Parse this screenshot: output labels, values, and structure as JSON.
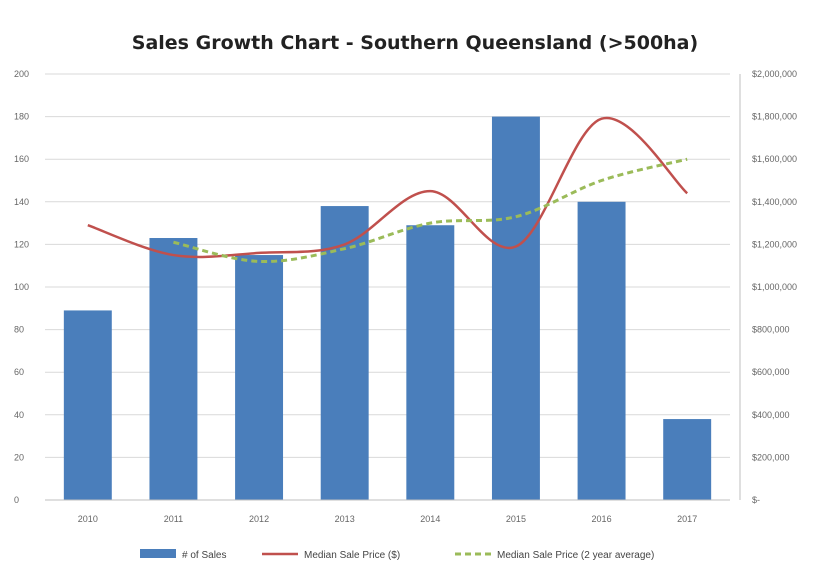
{
  "chart_data": {
    "type": "bar",
    "title": "Sales Growth Chart - Southern Queensland (>500ha)",
    "categories": [
      "2010",
      "2011",
      "2012",
      "2013",
      "2014",
      "2015",
      "2016",
      "2017"
    ],
    "series": [
      {
        "name": "# of Sales",
        "type": "bar",
        "axis": "left",
        "color": "#4a7ebb",
        "values": [
          89,
          123,
          115,
          138,
          129,
          180,
          140,
          38
        ]
      },
      {
        "name": "Median Sale Price ($)",
        "type": "line",
        "axis": "right",
        "color": "#c0504d",
        "values": [
          1290000,
          1150000,
          1160000,
          1200000,
          1450000,
          1190000,
          1790000,
          1440000
        ]
      },
      {
        "name": "Median Sale Price (2 year average)",
        "type": "line",
        "axis": "right",
        "color": "#9bbb59",
        "dashed": true,
        "values": [
          null,
          1210000,
          1120000,
          1180000,
          1300000,
          1330000,
          1500000,
          1600000
        ]
      }
    ],
    "y_left": {
      "ylim": [
        0,
        200
      ],
      "ticks": [
        "0",
        "20",
        "40",
        "60",
        "80",
        "100",
        "120",
        "140",
        "160",
        "180",
        "200"
      ]
    },
    "y_right": {
      "ylim": [
        0,
        2000000
      ],
      "ticks": [
        "$-",
        "$200,000",
        "$400,000",
        "$600,000",
        "$800,000",
        "$1,000,000",
        "$1,200,000",
        "$1,400,000",
        "$1,600,000",
        "$1,800,000",
        "$2,000,000"
      ]
    },
    "grid": true,
    "legend": {
      "position": "bottom",
      "items": [
        "# of Sales",
        "Median Sale Price ($)",
        "Median Sale Price (2 year average)"
      ]
    }
  }
}
